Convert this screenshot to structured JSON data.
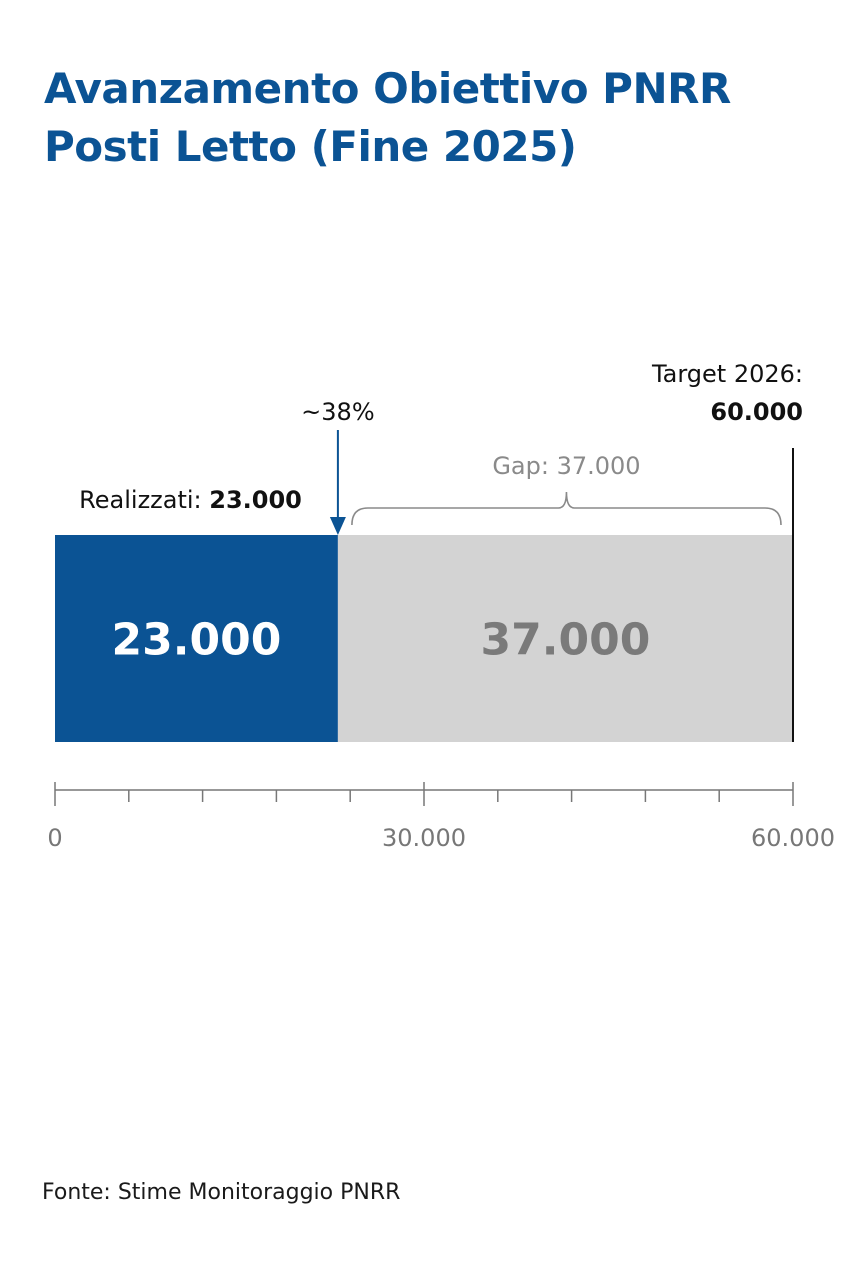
{
  "title_line1": "Avanzamento Obiettivo PNRR",
  "title_line2": "Posti Letto (Fine 2025)",
  "source": "Fonte: Stime Monitoraggio PNRR",
  "colors": {
    "title": "#0b5394",
    "achieved": "#0b5394",
    "gap": "#d3d3d3",
    "gap_text": "#7a7a7a",
    "axis": "#777777"
  },
  "chart_data": {
    "type": "bar",
    "orientation": "horizontal",
    "stacked": true,
    "xlim": [
      0,
      60000
    ],
    "ticks": [
      {
        "value": 0,
        "label": "0"
      },
      {
        "value": 30000,
        "label": "30.000"
      },
      {
        "value": 60000,
        "label": "60.000"
      }
    ],
    "minor_tick_step": 6000,
    "segments": [
      {
        "name": "Realizzati",
        "value": 23000,
        "label": "23.000",
        "color": "#0b5394"
      },
      {
        "name": "Gap",
        "value": 37000,
        "label": "37.000",
        "color": "#d3d3d3"
      }
    ],
    "annotations": {
      "achieved_prefix": "Realizzati: ",
      "achieved_value": "23.000",
      "percent": "~38%",
      "gap": "Gap: 37.000",
      "target_line1": "Target 2026:",
      "target_line2": "60.000"
    },
    "target": 60000
  }
}
